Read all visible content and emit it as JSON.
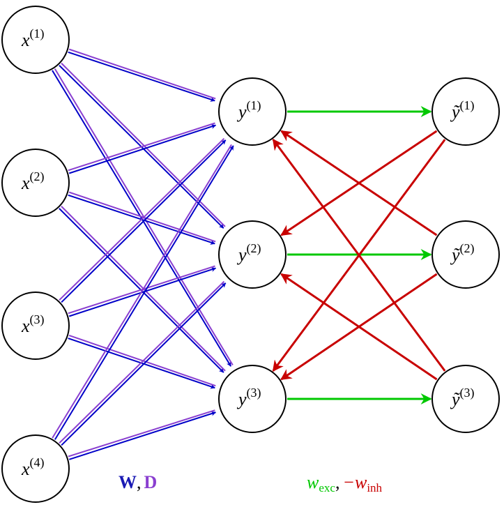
{
  "inputs": [
    {
      "base": "x",
      "sup": "(1)"
    },
    {
      "base": "x",
      "sup": "(2)"
    },
    {
      "base": "x",
      "sup": "(3)"
    },
    {
      "base": "x",
      "sup": "(4)"
    }
  ],
  "outputs": [
    {
      "base": "y",
      "sup": "(1)"
    },
    {
      "base": "y",
      "sup": "(2)"
    },
    {
      "base": "y",
      "sup": "(3)"
    }
  ],
  "interneurons": [
    {
      "base": "ỹ",
      "sup": "(1)"
    },
    {
      "base": "ỹ",
      "sup": "(2)"
    },
    {
      "base": "ỹ",
      "sup": "(3)"
    }
  ],
  "legend_left": {
    "w": "W",
    "sep": ",",
    "d": "D"
  },
  "legend_right": {
    "exc": "w",
    "exc_sub": "exc",
    "sep": ",",
    "inh": "−w",
    "inh_sub": "inh"
  }
}
